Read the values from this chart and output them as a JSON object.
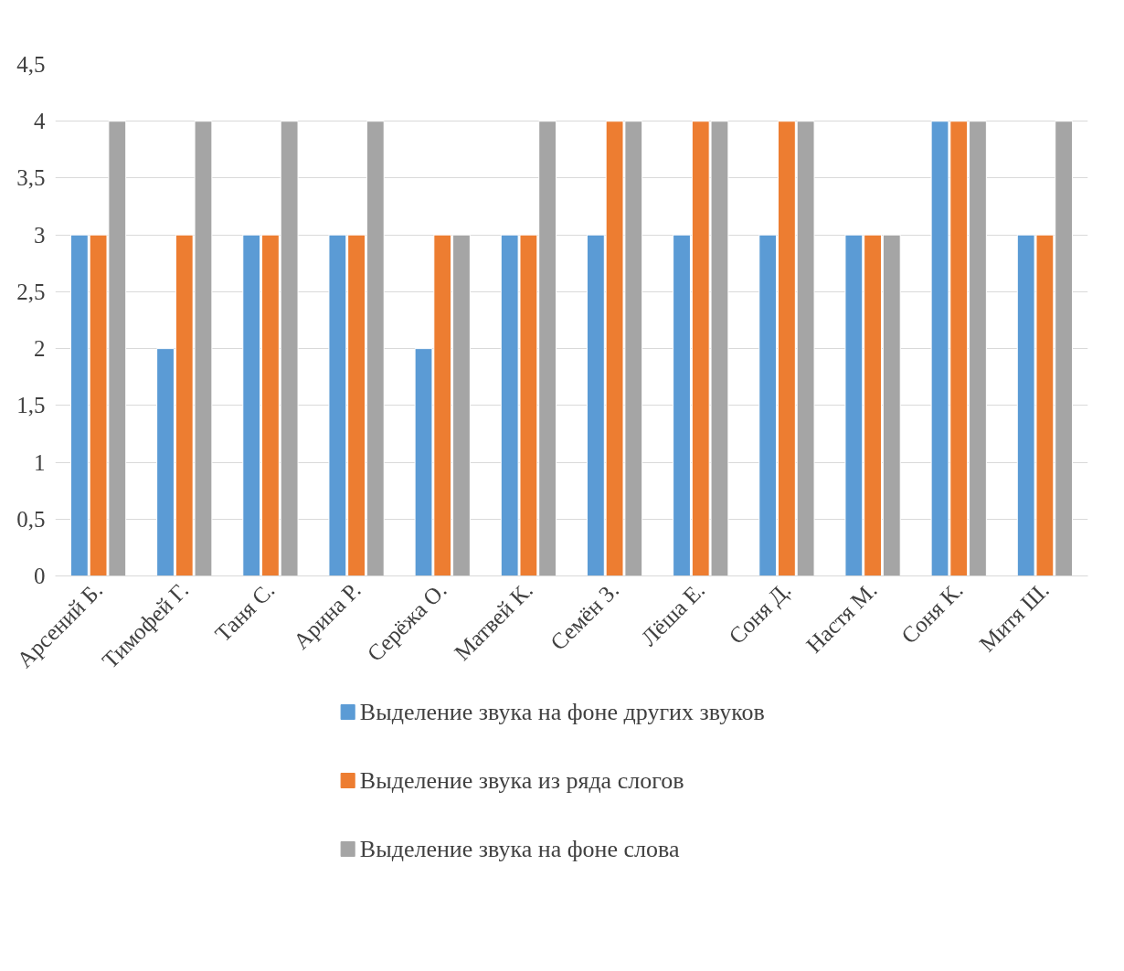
{
  "chart_data": {
    "type": "bar",
    "categories": [
      "Арсений Б.",
      "Тимофей Г.",
      "Таня С.",
      "Арина Р.",
      "Серёжа О.",
      "Матвей К.",
      "Семён З.",
      "Лёша Е.",
      "Соня Д.",
      "Настя М.",
      "Соня К.",
      "Митя Ш."
    ],
    "series": [
      {
        "name": "Выделение звука на фоне других звуков",
        "color": "#5b9bd5",
        "values": [
          3,
          2,
          3,
          3,
          2,
          3,
          3,
          3,
          3,
          3,
          4,
          3
        ]
      },
      {
        "name": "Выделение звука из ряда слогов",
        "color": "#ed7d31",
        "values": [
          3,
          3,
          3,
          3,
          3,
          3,
          4,
          4,
          4,
          3,
          4,
          3
        ]
      },
      {
        "name": "Выделение звука на фоне слова",
        "color": "#a5a5a5",
        "values": [
          4,
          4,
          4,
          4,
          3,
          4,
          4,
          4,
          4,
          3,
          4,
          4
        ]
      }
    ],
    "ylim": [
      0,
      4.5
    ],
    "yticks": [
      0,
      {
        "value": 0.5,
        "label": "0,5"
      },
      1,
      {
        "value": 1.5,
        "label": "1,5"
      },
      2,
      {
        "value": 2.5,
        "label": "2,5"
      },
      3,
      {
        "value": 3.5,
        "label": "3,5"
      },
      4,
      {
        "value": 4.5,
        "label": "4,5"
      }
    ],
    "grid": "y",
    "legend": "bottom"
  }
}
